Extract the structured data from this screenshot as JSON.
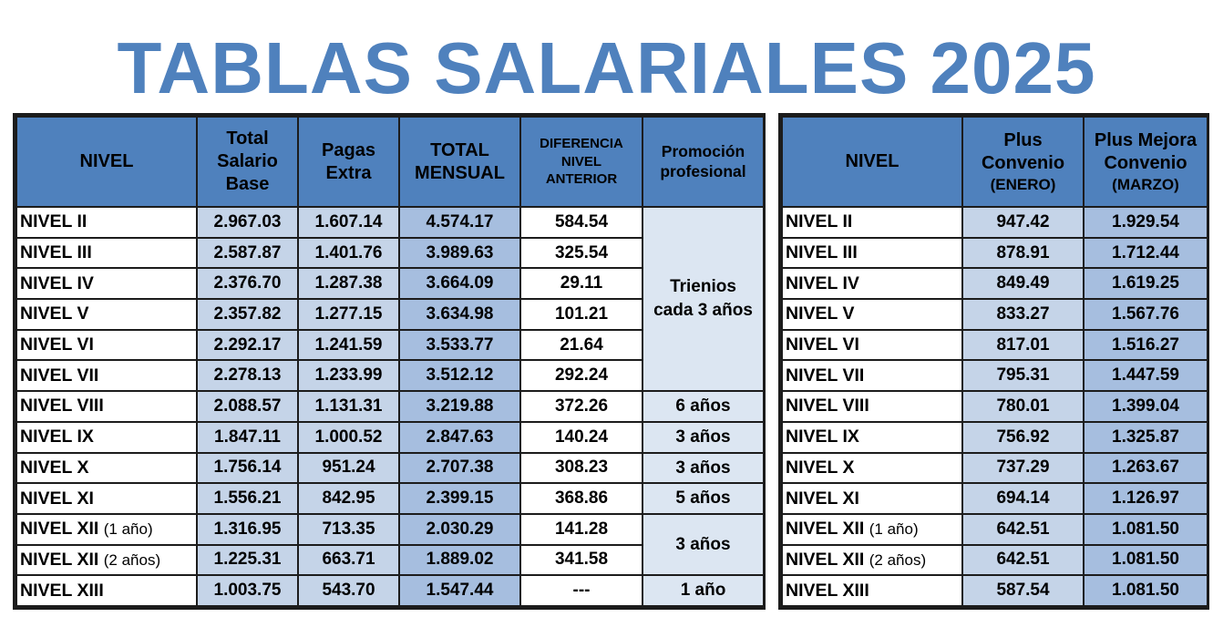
{
  "title": "TABLAS SALARIALES 2025",
  "left_table": {
    "headers": {
      "nivel": "NIVEL",
      "base_l1": "Total",
      "base_l2": "Salario",
      "base_l3": "Base",
      "pagas_l1": "Pagas",
      "pagas_l2": "Extra",
      "total_l1": "TOTAL",
      "total_l2": "MENSUAL",
      "dif_l1": "DIFERENCIA",
      "dif_l2": "NIVEL",
      "dif_l3": "ANTERIOR",
      "prom_l1": "Promoción",
      "prom_l2": "profesional"
    },
    "rows": [
      {
        "nivel": "NIVEL II",
        "sub": "",
        "base": "2.967.03",
        "pagas": "1.607.14",
        "total": "4.574.17",
        "dif": "584.54"
      },
      {
        "nivel": "NIVEL III",
        "sub": "",
        "base": "2.587.87",
        "pagas": "1.401.76",
        "total": "3.989.63",
        "dif": "325.54"
      },
      {
        "nivel": "NIVEL IV",
        "sub": "",
        "base": "2.376.70",
        "pagas": "1.287.38",
        "total": "3.664.09",
        "dif": "29.11"
      },
      {
        "nivel": "NIVEL V",
        "sub": "",
        "base": "2.357.82",
        "pagas": "1.277.15",
        "total": "3.634.98",
        "dif": "101.21"
      },
      {
        "nivel": "NIVEL VI",
        "sub": "",
        "base": "2.292.17",
        "pagas": "1.241.59",
        "total": "3.533.77",
        "dif": "21.64"
      },
      {
        "nivel": "NIVEL VII",
        "sub": "",
        "base": "2.278.13",
        "pagas": "1.233.99",
        "total": "3.512.12",
        "dif": "292.24"
      },
      {
        "nivel": "NIVEL VIII",
        "sub": "",
        "base": "2.088.57",
        "pagas": "1.131.31",
        "total": "3.219.88",
        "dif": "372.26"
      },
      {
        "nivel": "NIVEL IX",
        "sub": "",
        "base": "1.847.11",
        "pagas": "1.000.52",
        "total": "2.847.63",
        "dif": "140.24"
      },
      {
        "nivel": "NIVEL X",
        "sub": "",
        "base": "1.756.14",
        "pagas": "951.24",
        "total": "2.707.38",
        "dif": "308.23"
      },
      {
        "nivel": "NIVEL XI",
        "sub": "",
        "base": "1.556.21",
        "pagas": "842.95",
        "total": "2.399.15",
        "dif": "368.86"
      },
      {
        "nivel": "NIVEL XII",
        "sub": "(1 año)",
        "base": "1.316.95",
        "pagas": "713.35",
        "total": "2.030.29",
        "dif": "141.28"
      },
      {
        "nivel": "NIVEL XII",
        "sub": "(2 años)",
        "base": "1.225.31",
        "pagas": "663.71",
        "total": "1.889.02",
        "dif": "341.58"
      },
      {
        "nivel": "NIVEL XIII",
        "sub": "",
        "base": "1.003.75",
        "pagas": "543.70",
        "total": "1.547.44",
        "dif": "---"
      }
    ],
    "promocion": [
      {
        "label_l1": "Trienios",
        "label_l2": "cada 3 años"
      },
      {
        "label_l1": "6 años",
        "label_l2": ""
      },
      {
        "label_l1": "3 años",
        "label_l2": ""
      },
      {
        "label_l1": "3 años",
        "label_l2": ""
      },
      {
        "label_l1": "5 años",
        "label_l2": ""
      },
      {
        "label_l1": "3 años",
        "label_l2": ""
      },
      {
        "label_l1": "1 año",
        "label_l2": ""
      }
    ]
  },
  "right_table": {
    "headers": {
      "nivel": "NIVEL",
      "plus_l1": "Plus",
      "plus_l2": "Convenio",
      "plus_l3": "(ENERO)",
      "mejora_l1": "Plus Mejora",
      "mejora_l2": "Convenio",
      "mejora_l3": "(MARZO)"
    },
    "rows": [
      {
        "nivel": "NIVEL II",
        "sub": "",
        "plus": "947.42",
        "mejora": "1.929.54"
      },
      {
        "nivel": "NIVEL III",
        "sub": "",
        "plus": "878.91",
        "mejora": "1.712.44"
      },
      {
        "nivel": "NIVEL IV",
        "sub": "",
        "plus": "849.49",
        "mejora": "1.619.25"
      },
      {
        "nivel": "NIVEL V",
        "sub": "",
        "plus": "833.27",
        "mejora": "1.567.76"
      },
      {
        "nivel": "NIVEL VI",
        "sub": "",
        "plus": "817.01",
        "mejora": "1.516.27"
      },
      {
        "nivel": "NIVEL VII",
        "sub": "",
        "plus": "795.31",
        "mejora": "1.447.59"
      },
      {
        "nivel": "NIVEL VIII",
        "sub": "",
        "plus": "780.01",
        "mejora": "1.399.04"
      },
      {
        "nivel": "NIVEL IX",
        "sub": "",
        "plus": "756.92",
        "mejora": "1.325.87"
      },
      {
        "nivel": "NIVEL X",
        "sub": "",
        "plus": "737.29",
        "mejora": "1.263.67"
      },
      {
        "nivel": "NIVEL XI",
        "sub": "",
        "plus": "694.14",
        "mejora": "1.126.97"
      },
      {
        "nivel": "NIVEL XII",
        "sub": "(1 año)",
        "plus": "642.51",
        "mejora": "1.081.50"
      },
      {
        "nivel": "NIVEL XII",
        "sub": "(2 años)",
        "plus": "642.51",
        "mejora": "1.081.50"
      },
      {
        "nivel": "NIVEL XIII",
        "sub": "",
        "plus": "587.54",
        "mejora": "1.081.50"
      }
    ]
  }
}
